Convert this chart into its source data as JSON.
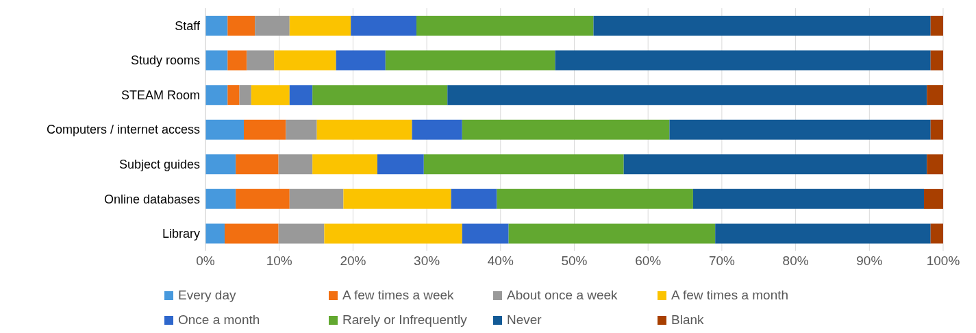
{
  "chart_data": {
    "type": "bar",
    "orientation": "horizontal",
    "stacked": true,
    "grid": "x",
    "legend": "bottom",
    "categories": [
      "Staff",
      "Study rooms",
      "STEAM Room",
      "Computers / internet access",
      "Subject guides",
      "Online databases",
      "Library"
    ],
    "xlim": [
      0,
      100
    ],
    "xticks": [
      {
        "value": 0,
        "label": "0%"
      },
      {
        "value": 10,
        "label": "10%"
      },
      {
        "value": 20,
        "label": "20%"
      },
      {
        "value": 30,
        "label": "30%"
      },
      {
        "value": 40,
        "label": "40%"
      },
      {
        "value": 50,
        "label": "50%"
      },
      {
        "value": 60,
        "label": "60%"
      },
      {
        "value": 70,
        "label": "70%"
      },
      {
        "value": 80,
        "label": "80%"
      },
      {
        "value": 90,
        "label": "90%"
      },
      {
        "value": 100,
        "label": "100%"
      }
    ],
    "series": [
      {
        "name": "Every day",
        "color": "#4799dd",
        "values": [
          3.0,
          3.0,
          3.0,
          5.2,
          4.1,
          4.1,
          2.6
        ]
      },
      {
        "name": "A few times a week",
        "color": "#f26f11",
        "values": [
          3.7,
          2.6,
          1.6,
          5.7,
          5.8,
          7.3,
          7.3
        ]
      },
      {
        "name": "About once a week",
        "color": "#999999",
        "values": [
          4.7,
          3.7,
          1.6,
          4.2,
          4.6,
          7.3,
          6.2
        ]
      },
      {
        "name": "A few times a month",
        "color": "#fbc300",
        "values": [
          8.3,
          8.4,
          5.2,
          12.9,
          8.8,
          14.6,
          18.7
        ]
      },
      {
        "name": "Once a month",
        "color": "#2e67cc",
        "values": [
          8.9,
          6.7,
          3.1,
          6.8,
          6.3,
          6.2,
          6.3
        ]
      },
      {
        "name": "Rarely or Infrequently",
        "color": "#62a830",
        "values": [
          24.0,
          23.0,
          18.3,
          28.1,
          27.1,
          26.6,
          28.0
        ]
      },
      {
        "name": "Never",
        "color": "#135a96",
        "values": [
          45.7,
          50.9,
          65.0,
          35.4,
          41.1,
          31.3,
          29.2
        ]
      },
      {
        "name": "Blank",
        "color": "#a83f00",
        "values": [
          1.7,
          1.7,
          2.2,
          1.7,
          2.2,
          2.6,
          1.7
        ]
      }
    ]
  }
}
